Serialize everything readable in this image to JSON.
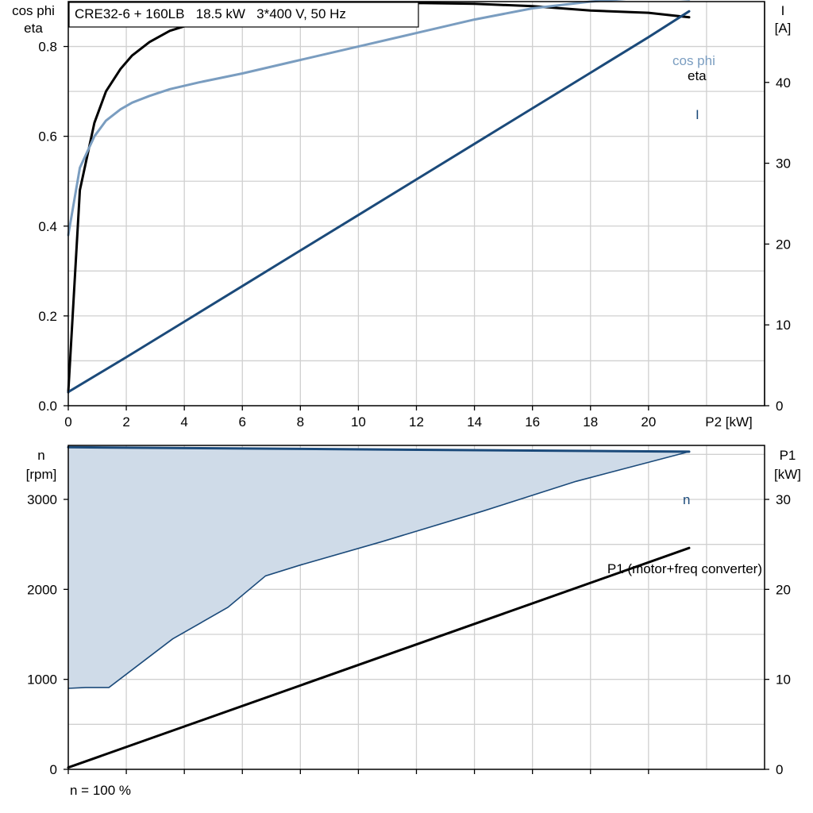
{
  "chart_data": [
    {
      "type": "line",
      "title": "CRE32-6 + 160LB   18.5 kW   3*400 V, 50 Hz",
      "xlabel": "P2 [kW]",
      "xlim": [
        0,
        24
      ],
      "x_ticks": [
        0,
        2,
        4,
        6,
        8,
        10,
        12,
        14,
        16,
        18,
        20
      ],
      "y_left_label": [
        "cos phi",
        "eta"
      ],
      "y_left_lim": [
        0,
        0.9
      ],
      "y_left_ticks": [
        0.0,
        0.2,
        0.4,
        0.6,
        0.8
      ],
      "y_left_tick_labels": [
        "0.0",
        "0.2",
        "0.4",
        "0.6",
        "0.8"
      ],
      "y_right_label": [
        "I",
        "[A]"
      ],
      "y_right_lim": [
        0,
        50
      ],
      "y_right_ticks": [
        0,
        10,
        20,
        30,
        40
      ],
      "grid": true,
      "series": [
        {
          "name": "eta",
          "axis": "left",
          "color": "#000000",
          "x": [
            0,
            0.4,
            0.9,
            1.3,
            1.8,
            2.2,
            2.8,
            3.5,
            4.5,
            6,
            8,
            10,
            12,
            14,
            16,
            18,
            20,
            21.4
          ],
          "y": [
            0.03,
            0.48,
            0.63,
            0.7,
            0.75,
            0.78,
            0.81,
            0.835,
            0.855,
            0.875,
            0.89,
            0.895,
            0.897,
            0.895,
            0.89,
            0.88,
            0.875,
            0.865
          ]
        },
        {
          "name": "cos phi",
          "axis": "left",
          "color": "#7a9dc0",
          "x": [
            0,
            0.4,
            0.9,
            1.3,
            1.8,
            2.2,
            2.8,
            3.5,
            4.5,
            6,
            8,
            10,
            12,
            14,
            16,
            18,
            20,
            21.4
          ],
          "y": [
            0.38,
            0.53,
            0.6,
            0.635,
            0.66,
            0.675,
            0.69,
            0.705,
            0.72,
            0.74,
            0.77,
            0.8,
            0.83,
            0.86,
            0.885,
            0.9,
            0.91,
            0.905
          ]
        },
        {
          "name": "I",
          "axis": "right",
          "color": "#1b4a7a",
          "x": [
            0,
            2,
            4,
            6,
            8,
            10,
            12,
            14,
            16,
            18,
            20,
            21.4
          ],
          "y": [
            1.7,
            6,
            10.4,
            14.8,
            19.2,
            23.6,
            28,
            32.4,
            36.8,
            41.2,
            45.6,
            48.8
          ]
        }
      ]
    },
    {
      "type": "line",
      "title": "",
      "xlim": [
        0,
        24
      ],
      "y_left_label": [
        "n",
        "[rpm]"
      ],
      "y_left_lim": [
        0,
        3600
      ],
      "y_left_ticks": [
        0,
        1000,
        2000,
        3000
      ],
      "y_right_label": [
        "P1",
        "[kW]"
      ],
      "y_right_lim": [
        0,
        36
      ],
      "y_right_ticks": [
        0,
        10,
        20,
        30
      ],
      "grid": true,
      "footnote": "n = 100 %",
      "series": [
        {
          "name": "n",
          "axis": "left",
          "color": "#1b4a7a",
          "x": [
            0,
            21.4
          ],
          "y": [
            3580,
            3530
          ]
        },
        {
          "name": "n range lower limit",
          "axis": "left",
          "color": "#1b4a7a",
          "x": [
            0,
            0.6,
            1.4,
            3.6,
            5.5,
            6.8,
            8,
            10.8,
            14.3,
            17.5,
            21.4
          ],
          "y": [
            900,
            910,
            910,
            1450,
            1800,
            2150,
            2270,
            2530,
            2870,
            3200,
            3530
          ]
        },
        {
          "name": "P1 (motor+freq converter)",
          "axis": "right",
          "color": "#000000",
          "x": [
            0,
            21.4
          ],
          "y": [
            0.2,
            24.6
          ]
        }
      ]
    }
  ]
}
